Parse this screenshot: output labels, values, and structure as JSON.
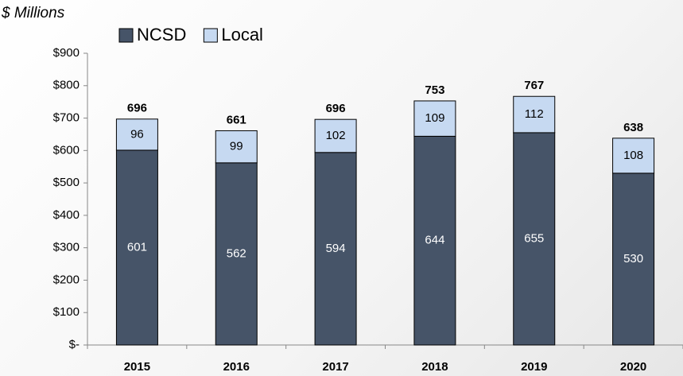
{
  "chart_data": {
    "type": "stacked_bar",
    "y_label": "$ Millions",
    "categories": [
      "2015",
      "2016",
      "2017",
      "2018",
      "2019",
      "2020"
    ],
    "series": [
      {
        "name": "NCSD",
        "color": "#465468",
        "values": [
          601,
          562,
          594,
          644,
          655,
          530
        ]
      },
      {
        "name": "Local",
        "color": "#c6d9f1",
        "values": [
          96,
          99,
          102,
          109,
          112,
          108
        ]
      }
    ],
    "totals": [
      696,
      661,
      696,
      753,
      767,
      638
    ],
    "ylim": [
      0,
      900
    ],
    "yticks": [
      {
        "value": 0,
        "label": "$-"
      },
      {
        "value": 100,
        "label": "$100"
      },
      {
        "value": 200,
        "label": "$200"
      },
      {
        "value": 300,
        "label": "$300"
      },
      {
        "value": 400,
        "label": "$400"
      },
      {
        "value": 500,
        "label": "$500"
      },
      {
        "value": 600,
        "label": "$600"
      },
      {
        "value": 700,
        "label": "$700"
      },
      {
        "value": 800,
        "label": "$800"
      },
      {
        "value": 900,
        "label": "$900"
      }
    ],
    "legend": "top"
  }
}
